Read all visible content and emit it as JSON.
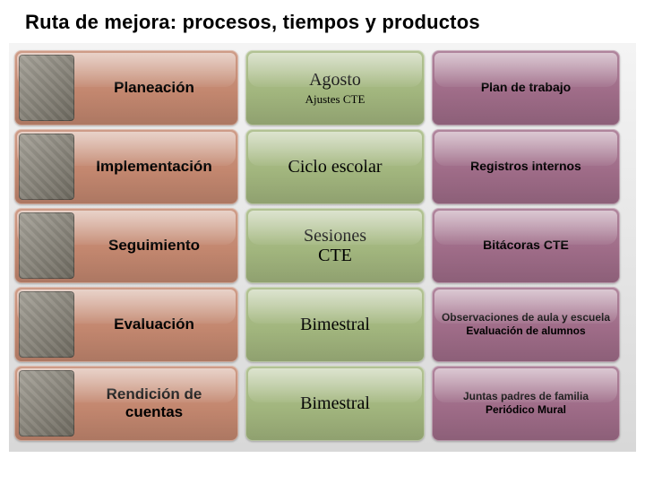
{
  "title": "Ruta de mejora: procesos, tiempos y productos",
  "colors": {
    "proc": "#c3876f",
    "time": "#a2b67e",
    "prod": "#9f6c88"
  },
  "rows": [
    {
      "process": "Planeación",
      "time_main": "Agosto",
      "time_sub": "Ajustes CTE",
      "products": [
        "Plan de trabajo"
      ]
    },
    {
      "process": "Implementación",
      "time_main": "Ciclo escolar",
      "time_sub": "",
      "products": [
        "Registros internos"
      ]
    },
    {
      "process": "Seguimiento",
      "time_main": "Sesiones CTE",
      "time_sub": "",
      "products": [
        "Bitácoras CTE"
      ]
    },
    {
      "process": "Evaluación",
      "time_main": "Bimestral",
      "time_sub": "",
      "products": [
        "Observaciones de aula y escuela",
        "Evaluación de alumnos"
      ]
    },
    {
      "process": "Rendición de cuentas",
      "time_main": "Bimestral",
      "time_sub": "",
      "products": [
        "Juntas padres de familia",
        "Periódico Mural"
      ]
    }
  ]
}
